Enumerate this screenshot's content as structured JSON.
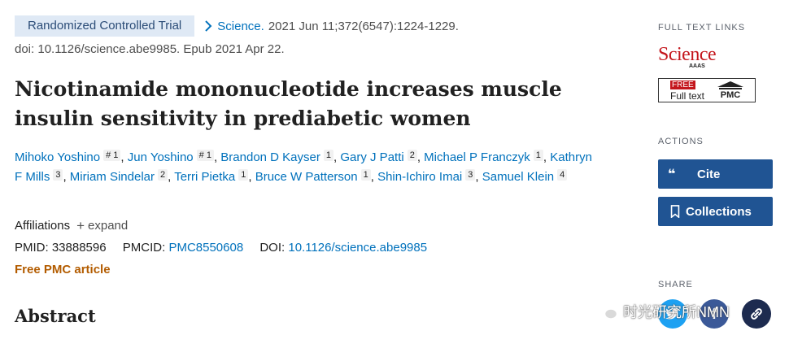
{
  "article": {
    "pub_type": "Randomized Controlled Trial",
    "journal": "Science.",
    "citation": "2021 Jun 11;372(6547):1224-1229.",
    "doi_line": "doi: 10.1126/science.abe9985. Epub 2021 Apr 22.",
    "title": "Nicotinamide mononucleotide increases muscle insulin sensitivity in prediabetic women",
    "authors": [
      {
        "name": "Mihoko Yoshino",
        "sup": "# 1",
        "sep": ","
      },
      {
        "name": "Jun Yoshino",
        "sup": "# 1",
        "sep": ","
      },
      {
        "name": "Brandon D Kayser",
        "sup": "1",
        "sep": ","
      },
      {
        "name": "Gary J Patti",
        "sup": "2",
        "sep": ","
      },
      {
        "name": "Michael P Franczyk",
        "sup": "1",
        "sep": ","
      },
      {
        "name": "Kathryn F Mills",
        "sup": "3",
        "sep": ","
      },
      {
        "name": "Miriam Sindelar",
        "sup": "2",
        "sep": ","
      },
      {
        "name": "Terri Pietka",
        "sup": "1",
        "sep": ","
      },
      {
        "name": "Bruce W Patterson",
        "sup": "1",
        "sep": ","
      },
      {
        "name": "Shin-Ichiro Imai",
        "sup": "3",
        "sep": ","
      },
      {
        "name": "Samuel Klein",
        "sup": "4",
        "sep": ""
      }
    ],
    "affiliations_label": "Affiliations",
    "expand_label": "expand",
    "pmid_label": "PMID:",
    "pmid": "33888596",
    "pmcid_label": "PMCID:",
    "pmcid": "PMC8550608",
    "doi_label": "DOI:",
    "doi": "10.1126/science.abe9985",
    "free_pmc": "Free PMC article",
    "abstract_heading": "Abstract"
  },
  "sidebar": {
    "full_text_heading": "FULL TEXT LINKS",
    "science_logo": "Science",
    "aaas": "AAAS",
    "free_tag": "FREE",
    "full_text": "Full text",
    "pmc_logo": "PMC",
    "actions_heading": "ACTIONS",
    "cite_label": "Cite",
    "collections_label": "Collections",
    "share_heading": "SHARE"
  },
  "watermark": {
    "text": "时光研究所NMN"
  },
  "colors": {
    "link": "#0071bc",
    "button": "#205493",
    "free_pmc": "#b35c00",
    "twitter": "#1da1f2",
    "facebook": "#3b5998",
    "permalink": "#1d2b4f"
  },
  "icons": {
    "journal_link": "chevron-right-icon",
    "expand": "plus-icon",
    "cite": "quote-icon",
    "collections": "bookmark-icon",
    "share": [
      "twitter-icon",
      "facebook-icon",
      "link-icon"
    ],
    "watermark": "wechat-icon"
  }
}
